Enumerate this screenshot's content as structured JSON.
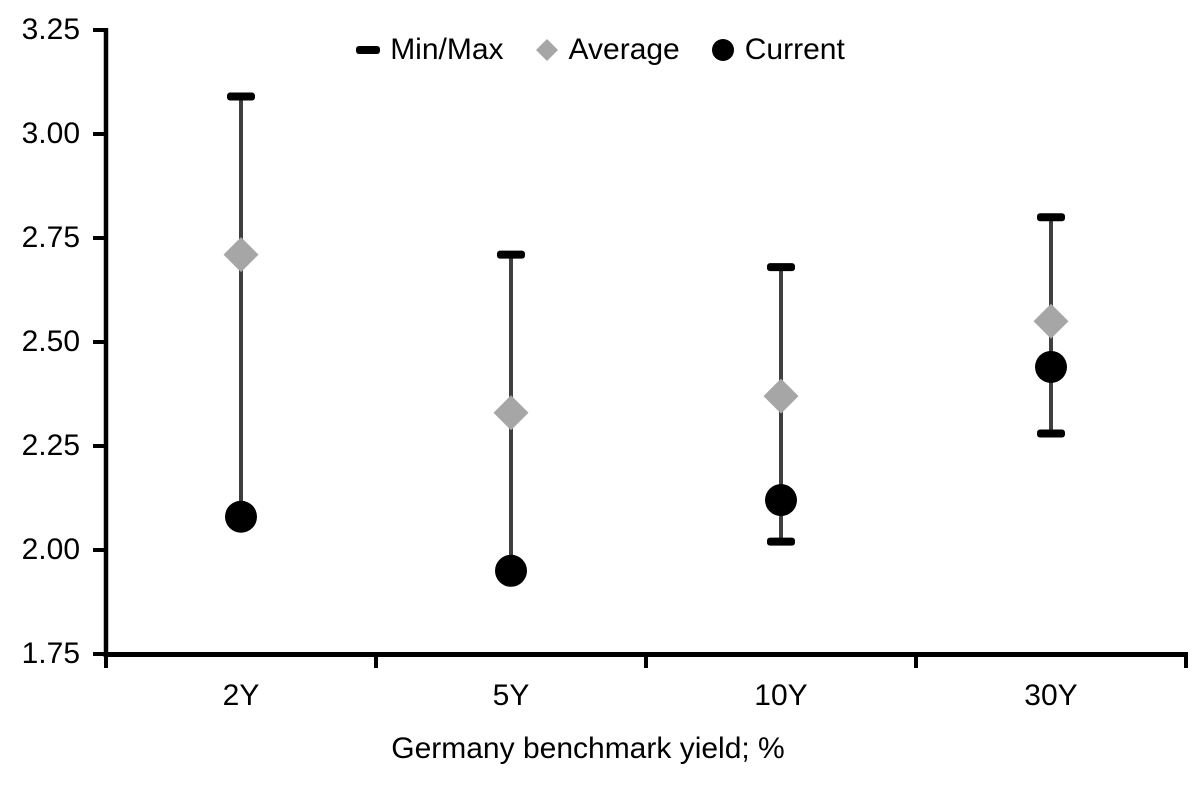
{
  "figure": {
    "background": "#ffffff"
  },
  "legend": {
    "items": [
      {
        "label": "Min/Max",
        "marker": "dash",
        "color": "#000000"
      },
      {
        "label": "Average",
        "marker": "diamond",
        "color": "#a6a6a6"
      },
      {
        "label": "Current",
        "marker": "circle",
        "color": "#000000"
      }
    ]
  },
  "chart_data": {
    "type": "scatter",
    "title": "",
    "xlabel": "Germany benchmark yield; %",
    "ylabel": "",
    "categories": [
      "2Y",
      "5Y",
      "10Y",
      "30Y"
    ],
    "ylim": [
      1.75,
      3.25
    ],
    "ytick_step": 0.25,
    "ytick_labels": [
      "3.25",
      "3.00",
      "2.75",
      "2.50",
      "2.25",
      "2.00",
      "1.75"
    ],
    "grid": false,
    "legend_position": "top-center",
    "series": [
      {
        "name": "Min/Max",
        "type": "range",
        "color": "#000000",
        "line_color": "#3f3f3f",
        "max": [
          3.09,
          2.71,
          2.68,
          2.8
        ],
        "min": [
          2.08,
          1.95,
          2.02,
          2.28
        ],
        "min_cap_visible": [
          false,
          false,
          true,
          true
        ]
      },
      {
        "name": "Average",
        "type": "point",
        "marker": "diamond",
        "color": "#a6a6a6",
        "values": [
          2.71,
          2.33,
          2.37,
          2.55
        ]
      },
      {
        "name": "Current",
        "type": "point",
        "marker": "circle",
        "color": "#000000",
        "values": [
          2.08,
          1.95,
          2.12,
          2.44
        ]
      }
    ]
  }
}
